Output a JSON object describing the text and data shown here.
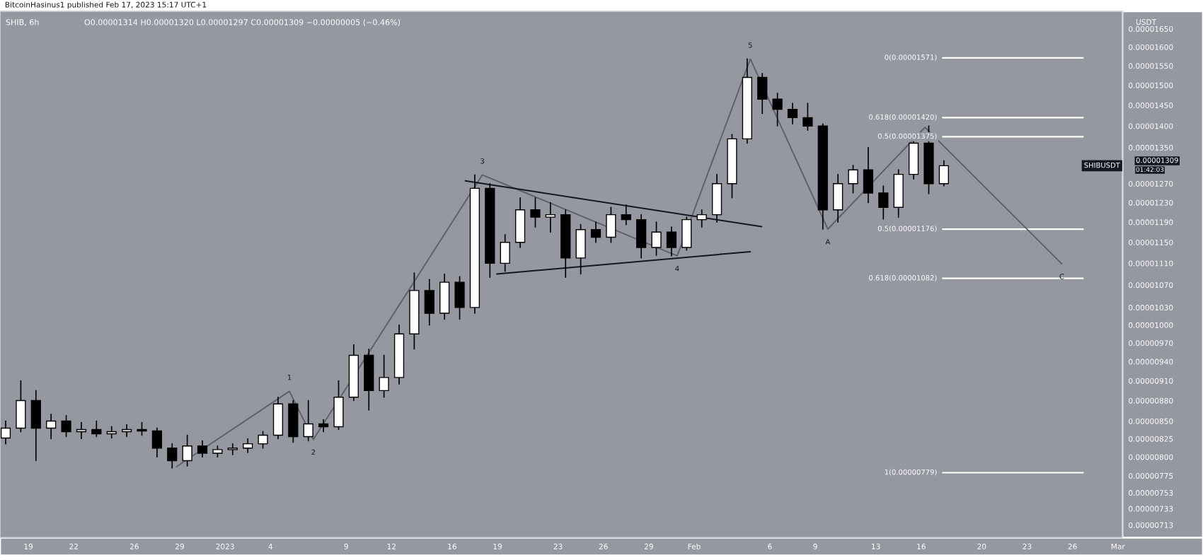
{
  "chart_data": {
    "type": "candlestick",
    "title": "SHIB, 6h",
    "subtitle": "O0.00001314 H0.00001320 L0.00001297 C0.00001309 −0.00000005 (−0.46%)",
    "ylabel": "USDT",
    "annotations": [
      "BitcoinHasinus1 published Feb 17, 2023 15:17 UTC+1",
      "SHIBUSDT",
      "0.00001309",
      "01:42:03",
      {
        "text": "1",
        "x": "2023-01-05T06:00",
        "y": 8.94e-06
      },
      {
        "text": "2",
        "x": "2023-01-06T20:00",
        "y": 8.24e-06
      },
      {
        "text": "3",
        "x": "2023-01-18T00:00",
        "y": 1.289e-05
      },
      {
        "text": "4",
        "x": "2023-01-30T21:00",
        "y": 1.124e-05
      },
      {
        "text": "5",
        "x": "2023-02-04T17:00",
        "y": 1.568e-05
      },
      {
        "text": "A",
        "x": "2023-02-09T20:00",
        "y": 1.176e-05
      },
      {
        "text": "C",
        "x": "2023-02-25T07:00",
        "y": 1.109e-05
      }
    ],
    "x": [
      "2022-12-17T12:00",
      "2022-12-18T12:00",
      "2022-12-19T12:00",
      "2022-12-20T12:00",
      "2022-12-21T12:00",
      "2022-12-22T12:00",
      "2022-12-23T12:00",
      "2022-12-24T12:00",
      "2022-12-25T12:00",
      "2022-12-26T12:00",
      "2022-12-27T12:00",
      "2022-12-28T12:00",
      "2022-12-29T12:00",
      "2022-12-30T12:00",
      "2022-12-31T12:00",
      "2023-01-01T12:00",
      "2023-01-02T12:00",
      "2023-01-03T12:00",
      "2023-01-04T12:00",
      "2023-01-05T12:00",
      "2023-01-06T12:00",
      "2023-01-07T12:00",
      "2023-01-08T12:00",
      "2023-01-09T12:00",
      "2023-01-10T12:00",
      "2023-01-11T12:00",
      "2023-01-12T12:00",
      "2023-01-13T12:00",
      "2023-01-14T12:00",
      "2023-01-15T12:00",
      "2023-01-16T12:00",
      "2023-01-17T12:00",
      "2023-01-18T12:00",
      "2023-01-19T12:00",
      "2023-01-20T12:00",
      "2023-01-21T12:00",
      "2023-01-22T12:00",
      "2023-01-23T12:00",
      "2023-01-24T12:00",
      "2023-01-25T12:00",
      "2023-01-26T12:00",
      "2023-01-27T12:00",
      "2023-01-28T12:00",
      "2023-01-29T12:00",
      "2023-01-30T12:00",
      "2023-01-31T12:00",
      "2023-02-01T12:00",
      "2023-02-02T12:00",
      "2023-02-03T12:00",
      "2023-02-04T12:00",
      "2023-02-05T12:00",
      "2023-02-06T12:00",
      "2023-02-07T12:00",
      "2023-02-08T12:00",
      "2023-02-09T12:00",
      "2023-02-10T12:00",
      "2023-02-11T12:00",
      "2023-02-12T12:00",
      "2023-02-13T12:00",
      "2023-02-14T12:00",
      "2023-02-15T12:00",
      "2023-02-16T12:00",
      "2023-02-17T12:00"
    ],
    "ohlc": [
      [
        8.26e-06,
        8.5e-06,
        8.18e-06,
        8.4e-06
      ],
      [
        8.4e-06,
        9.1e-06,
        8.35e-06,
        8.8e-06
      ],
      [
        8.8e-06,
        8.95e-06,
        7.95e-06,
        8.4e-06
      ],
      [
        8.4e-06,
        8.6e-06,
        8.25e-06,
        8.5e-06
      ],
      [
        8.5e-06,
        8.58e-06,
        8.28e-06,
        8.35e-06
      ],
      [
        8.35e-06,
        8.48e-06,
        8.25e-06,
        8.38e-06
      ],
      [
        8.38e-06,
        8.5e-06,
        8.28e-06,
        8.32e-06
      ],
      [
        8.32e-06,
        8.42e-06,
        8.26e-06,
        8.35e-06
      ],
      [
        8.35e-06,
        8.45e-06,
        8.28e-06,
        8.38e-06
      ],
      [
        8.38e-06,
        8.48e-06,
        8.3e-06,
        8.36e-06
      ],
      [
        8.36e-06,
        8.4e-06,
        8e-06,
        8.12e-06
      ],
      [
        8.12e-06,
        8.18e-06,
        7.85e-06,
        7.95e-06
      ],
      [
        7.95e-06,
        8.3e-06,
        7.88e-06,
        8.15e-06
      ],
      [
        8.15e-06,
        8.22e-06,
        8e-06,
        8.05e-06
      ],
      [
        8.05e-06,
        8.15e-06,
        8e-06,
        8.1e-06
      ],
      [
        8.1e-06,
        8.18e-06,
        8.03e-06,
        8.12e-06
      ],
      [
        8.12e-06,
        8.25e-06,
        8.06e-06,
        8.18e-06
      ],
      [
        8.18e-06,
        8.35e-06,
        8.12e-06,
        8.3e-06
      ],
      [
        8.3e-06,
        8.85e-06,
        8.25e-06,
        8.75e-06
      ],
      [
        8.75e-06,
        8.8e-06,
        8.2e-06,
        8.28e-06
      ],
      [
        8.28e-06,
        8.8e-06,
        8.22e-06,
        8.46e-06
      ],
      [
        8.46e-06,
        8.52e-06,
        8.35e-06,
        8.42e-06
      ],
      [
        8.42e-06,
        9.1e-06,
        8.38e-06,
        8.85e-06
      ],
      [
        8.85e-06,
        9.67e-06,
        8.8e-06,
        9.5e-06
      ],
      [
        9.5e-06,
        9.6e-06,
        8.66e-06,
        8.95e-06
      ],
      [
        8.95e-06,
        9.5e-06,
        8.85e-06,
        9.15e-06
      ],
      [
        9.15e-06,
        1e-05,
        9.05e-06,
        9.85e-06
      ],
      [
        9.85e-06,
        1.092e-05,
        9.6e-06,
        1.06e-05
      ],
      [
        1.06e-05,
        1.08e-05,
        1e-05,
        1.02e-05
      ],
      [
        1.02e-05,
        1.09e-05,
        1.01e-05,
        1.075e-05
      ],
      [
        1.075e-05,
        1.085e-05,
        1.01e-05,
        1.03e-05
      ],
      [
        1.03e-05,
        1.289e-05,
        1.02e-05,
        1.26e-05
      ],
      [
        1.26e-05,
        1.27e-05,
        1.084e-05,
        1.11e-05
      ],
      [
        1.11e-05,
        1.165e-05,
        1.095e-05,
        1.15e-05
      ],
      [
        1.15e-05,
        1.24e-05,
        1.14e-05,
        1.215e-05
      ],
      [
        1.215e-05,
        1.24e-05,
        1.18e-05,
        1.2e-05
      ],
      [
        1.2e-05,
        1.23e-05,
        1.17e-05,
        1.205e-05
      ],
      [
        1.205e-05,
        1.215e-05,
        1.084e-05,
        1.12e-05
      ],
      [
        1.12e-05,
        1.185e-05,
        1.09e-05,
        1.175e-05
      ],
      [
        1.175e-05,
        1.19e-05,
        1.15e-05,
        1.16e-05
      ],
      [
        1.16e-05,
        1.22e-05,
        1.15e-05,
        1.205e-05
      ],
      [
        1.205e-05,
        1.225e-05,
        1.185e-05,
        1.195e-05
      ],
      [
        1.195e-05,
        1.205e-05,
        1.12e-05,
        1.14e-05
      ],
      [
        1.14e-05,
        1.19e-05,
        1.125e-05,
        1.17e-05
      ],
      [
        1.17e-05,
        1.18e-05,
        1.124e-05,
        1.14e-05
      ],
      [
        1.14e-05,
        1.2e-05,
        1.135e-05,
        1.195e-05
      ],
      [
        1.195e-05,
        1.215e-05,
        1.18e-05,
        1.205e-05
      ],
      [
        1.205e-05,
        1.29e-05,
        1.19e-05,
        1.27e-05
      ],
      [
        1.27e-05,
        1.38e-05,
        1.24e-05,
        1.37e-05
      ],
      [
        1.37e-05,
        1.568e-05,
        1.36e-05,
        1.52e-05
      ],
      [
        1.52e-05,
        1.53e-05,
        1.43e-05,
        1.465e-05
      ],
      [
        1.465e-05,
        1.48e-05,
        1.4e-05,
        1.44e-05
      ],
      [
        1.44e-05,
        1.455e-05,
        1.405e-05,
        1.42e-05
      ],
      [
        1.42e-05,
        1.455e-05,
        1.39e-05,
        1.4e-05
      ],
      [
        1.4e-05,
        1.405e-05,
        1.176e-05,
        1.215e-05
      ],
      [
        1.215e-05,
        1.29e-05,
        1.19e-05,
        1.27e-05
      ],
      [
        1.27e-05,
        1.31e-05,
        1.25e-05,
        1.3e-05
      ],
      [
        1.3e-05,
        1.35e-05,
        1.23e-05,
        1.25e-05
      ],
      [
        1.25e-05,
        1.265e-05,
        1.196e-05,
        1.22e-05
      ],
      [
        1.22e-05,
        1.3e-05,
        1.2e-05,
        1.29e-05
      ],
      [
        1.29e-05,
        1.37e-05,
        1.28e-05,
        1.36e-05
      ],
      [
        1.36e-05,
        1.4e-05,
        1.249e-05,
        1.27e-05
      ],
      [
        1.27e-05,
        1.32e-05,
        1.265e-05,
        1.309e-05
      ]
    ],
    "series": [
      {
        "type": "line",
        "color": "#5d606b",
        "x": [
          "2022-12-28T19:00",
          "2023-01-05T06:00",
          "2023-01-06T20:00",
          "2023-01-18T00:00",
          "2023-01-30T21:00",
          "2023-02-04T17:00",
          "2023-02-09T20:00",
          "2023-02-16T06:00",
          "2023-02-25T07:00"
        ],
        "values": [
          7.87e-06,
          8.94e-06,
          8.24e-06,
          1.289e-05,
          1.124e-05,
          1.568e-05,
          1.176e-05,
          1.397e-05,
          1.109e-05
        ]
      },
      {
        "type": "line",
        "color": "#131722",
        "x": [
          "2023-01-16T21:00",
          "2023-02-05T11:00"
        ],
        "values": [
          1.276e-05,
          1.181e-05
        ]
      },
      {
        "type": "line",
        "color": "#131722",
        "x": [
          "2023-01-18T23:00",
          "2023-02-04T17:00"
        ],
        "values": [
          1.09e-05,
          1.132e-05
        ]
      }
    ],
    "ref_lines": [
      {
        "axis": "y",
        "value": 1.571e-05,
        "label": "0(0.00001571)",
        "color": "#ffffff"
      },
      {
        "axis": "y",
        "value": 1.42e-05,
        "label": "0.618(0.00001420)",
        "color": "#ffffff"
      },
      {
        "axis": "y",
        "value": 1.375e-05,
        "label": "0.5(0.00001375)",
        "color": "#ffffff"
      },
      {
        "axis": "y",
        "value": 1.176e-05,
        "label": "0.5(0.00001176)",
        "color": "#ffffff"
      },
      {
        "axis": "y",
        "value": 1.082e-05,
        "label": "0.618(0.00001082)",
        "color": "#ffffff"
      },
      {
        "axis": "y",
        "value": 7.79e-06,
        "label": "1(0.00000779)",
        "color": "#ffffff"
      }
    ],
    "log": true,
    "grid": false,
    "legend": false,
    "xlim": [
      "2022-12-17T03:00",
      "2023-03-01T07:00"
    ],
    "xticks": [
      {
        "value": "2022-12-19",
        "label": "19"
      },
      {
        "value": "2022-12-22",
        "label": "22"
      },
      {
        "value": "2022-12-26",
        "label": "26"
      },
      {
        "value": "2022-12-29",
        "label": "29"
      },
      {
        "value": "2023-01-01",
        "label": "2023"
      },
      {
        "value": "2023-01-04",
        "label": "4"
      },
      {
        "value": "2023-01-09",
        "label": "9"
      },
      {
        "value": "2023-01-12",
        "label": "12"
      },
      {
        "value": "2023-01-16",
        "label": "16"
      },
      {
        "value": "2023-01-19",
        "label": "19"
      },
      {
        "value": "2023-01-23",
        "label": "23"
      },
      {
        "value": "2023-01-26",
        "label": "26"
      },
      {
        "value": "2023-01-29",
        "label": "29"
      },
      {
        "value": "2023-02-01",
        "label": "Feb"
      },
      {
        "value": "2023-02-06",
        "label": "6"
      },
      {
        "value": "2023-02-09",
        "label": "9"
      },
      {
        "value": "2023-02-13",
        "label": "13"
      },
      {
        "value": "2023-02-16",
        "label": "16"
      },
      {
        "value": "2023-02-20",
        "label": "20"
      },
      {
        "value": "2023-02-23",
        "label": "23"
      },
      {
        "value": "2023-02-26",
        "label": "26"
      },
      {
        "value": "2023-03-01",
        "label": "Mar"
      }
    ],
    "ylim": [
      6.98e-06,
      1.7e-05
    ],
    "yticks": [
      {
        "value": 1.65e-05,
        "label": "0.00001650"
      },
      {
        "value": 1.6e-05,
        "label": "0.00001600"
      },
      {
        "value": 1.55e-05,
        "label": "0.00001550"
      },
      {
        "value": 1.5e-05,
        "label": "0.00001500"
      },
      {
        "value": 1.45e-05,
        "label": "0.00001450"
      },
      {
        "value": 1.4e-05,
        "label": "0.00001400"
      },
      {
        "value": 1.35e-05,
        "label": "0.00001350"
      },
      {
        "value": 1.27e-05,
        "label": "0.00001270"
      },
      {
        "value": 1.23e-05,
        "label": "0.00001230"
      },
      {
        "value": 1.19e-05,
        "label": "0.00001190"
      },
      {
        "value": 1.15e-05,
        "label": "0.00001150"
      },
      {
        "value": 1.11e-05,
        "label": "0.00001110"
      },
      {
        "value": 1.07e-05,
        "label": "0.00001070"
      },
      {
        "value": 1.03e-05,
        "label": "0.00001030"
      },
      {
        "value": 1e-05,
        "label": "0.00001000"
      },
      {
        "value": 9.7e-06,
        "label": "0.00000970"
      },
      {
        "value": 9.4e-06,
        "label": "0.00000940"
      },
      {
        "value": 9.1e-06,
        "label": "0.00000910"
      },
      {
        "value": 8.8e-06,
        "label": "0.00000880"
      },
      {
        "value": 8.5e-06,
        "label": "0.00000850"
      },
      {
        "value": 8.25e-06,
        "label": "0.00000825"
      },
      {
        "value": 8e-06,
        "label": "0.00000800"
      },
      {
        "value": 7.75e-06,
        "label": "0.00000775"
      },
      {
        "value": 7.53e-06,
        "label": "0.00000753"
      },
      {
        "value": 7.33e-06,
        "label": "0.00000733"
      },
      {
        "value": 7.13e-06,
        "label": "0.00000713"
      }
    ]
  }
}
